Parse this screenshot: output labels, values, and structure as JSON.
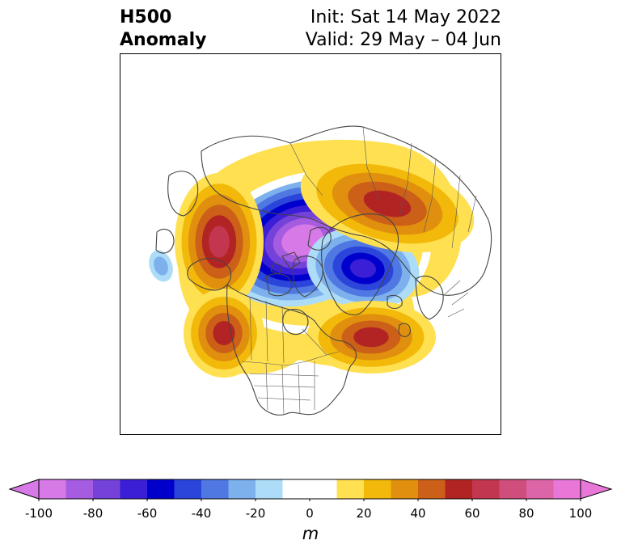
{
  "title": {
    "left_line1": "H500",
    "left_line2": "Anomaly",
    "init": "Init: Sat 14 May 2022",
    "valid": "Valid: 29 May – 04 Jun"
  },
  "colorbar": {
    "unit": "m",
    "ticks": [
      "-100",
      "-80",
      "-60",
      "-40",
      "-20",
      "0",
      "20",
      "40",
      "60",
      "80",
      "100"
    ],
    "min": -100,
    "max": 100,
    "extend": "both",
    "bins": [
      {
        "from": -100,
        "to": -90,
        "color": "#d879e8"
      },
      {
        "from": -90,
        "to": -80,
        "color": "#a55ce0"
      },
      {
        "from": -80,
        "to": -70,
        "color": "#7442d9"
      },
      {
        "from": -70,
        "to": -60,
        "color": "#3b1fd6"
      },
      {
        "from": -60,
        "to": -50,
        "color": "#0000cd"
      },
      {
        "from": -50,
        "to": -40,
        "color": "#2b45db"
      },
      {
        "from": -40,
        "to": -30,
        "color": "#5078e2"
      },
      {
        "from": -30,
        "to": -20,
        "color": "#7db1ee"
      },
      {
        "from": -20,
        "to": -10,
        "color": "#addcf8"
      },
      {
        "from": -10,
        "to": 10,
        "color": "#ffffff"
      },
      {
        "from": 10,
        "to": 20,
        "color": "#ffe050"
      },
      {
        "from": 20,
        "to": 30,
        "color": "#f2b90a"
      },
      {
        "from": 30,
        "to": 40,
        "color": "#e0900e"
      },
      {
        "from": 40,
        "to": 50,
        "color": "#cc6018"
      },
      {
        "from": 50,
        "to": 60,
        "color": "#b22424"
      },
      {
        "from": 60,
        "to": 70,
        "color": "#c33650"
      },
      {
        "from": 70,
        "to": 80,
        "color": "#cf4e7c"
      },
      {
        "from": 80,
        "to": 90,
        "color": "#dc65a8"
      },
      {
        "from": 90,
        "to": 100,
        "color": "#e877d8"
      }
    ],
    "under_color": "#d879e8",
    "over_color": "#e877d8"
  },
  "map": {
    "projection": "north-polar-stereographic",
    "region": "Northern Hemisphere / North America",
    "anomalies": [
      {
        "name": "arctic-low",
        "sign": "negative",
        "peak": -100
      },
      {
        "name": "canadian-archipelago-low",
        "sign": "negative",
        "peak": -60
      },
      {
        "name": "alaska-west-high",
        "sign": "positive",
        "peak": 60
      },
      {
        "name": "siberia-high",
        "sign": "positive",
        "peak": 50
      },
      {
        "name": "atlantic-high",
        "sign": "positive",
        "peak": 50
      },
      {
        "name": "pacific-high",
        "sign": "positive",
        "peak": 50
      },
      {
        "name": "pacific-small-low",
        "sign": "negative",
        "peak": -20
      }
    ]
  }
}
